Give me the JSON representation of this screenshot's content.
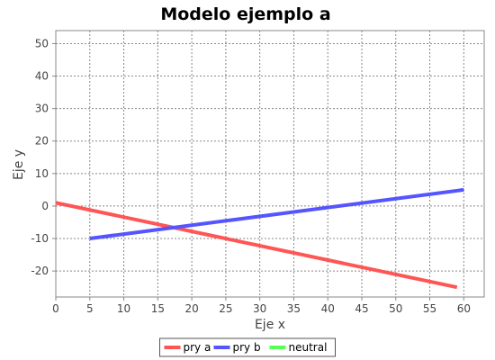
{
  "chart_data": {
    "type": "line",
    "title": "Modelo ejemplo a",
    "xlabel": "Eje x",
    "ylabel": "Eje y",
    "xlim": [
      0,
      63
    ],
    "ylim": [
      -28,
      54
    ],
    "xticks": [
      "0",
      "5",
      "10",
      "15",
      "20",
      "25",
      "30",
      "35",
      "40",
      "45",
      "50",
      "55",
      "60"
    ],
    "yticks": [
      "-20",
      "-10",
      "0",
      "10",
      "20",
      "30",
      "40",
      "50"
    ],
    "grid": true,
    "legend_position": "bottom",
    "series": [
      {
        "name": "pry a",
        "color": "#ff5555",
        "x": [
          0,
          59
        ],
        "y": [
          1,
          -25
        ]
      },
      {
        "name": "pry b",
        "color": "#5555ff",
        "x": [
          5,
          60
        ],
        "y": [
          -10,
          5
        ]
      },
      {
        "name": "neutral",
        "color": "#55ff55",
        "x": [],
        "y": []
      }
    ]
  }
}
